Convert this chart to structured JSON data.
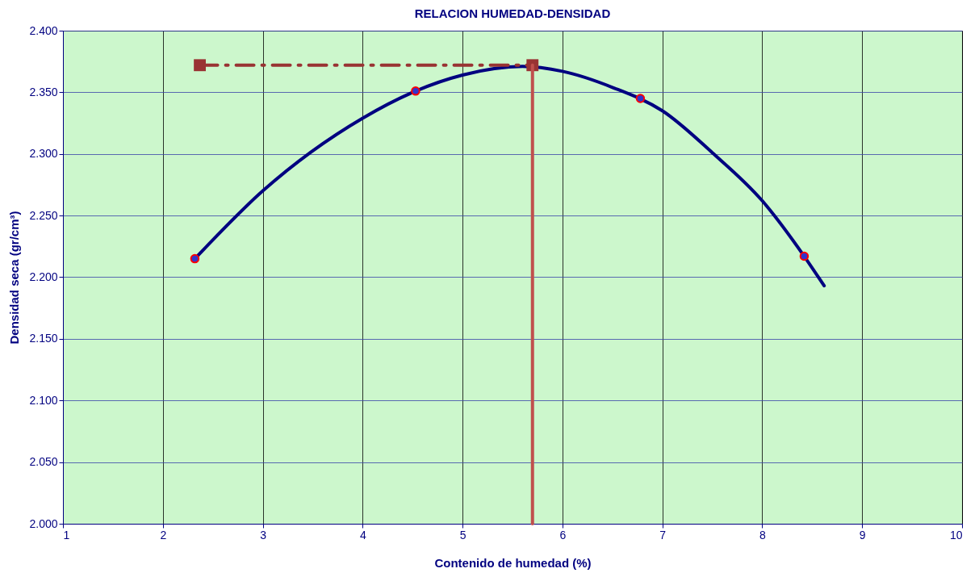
{
  "chart_data": {
    "type": "scatter",
    "title": "RELACION HUMEDAD-DENSIDAD",
    "xlabel": "Contenido de humedad (%)",
    "ylabel": "Densidad seca (gr/cm³)",
    "xlim": [
      1,
      10
    ],
    "xticks": [
      1,
      2,
      3,
      4,
      5,
      6,
      7,
      8,
      9,
      10
    ],
    "ylim": [
      2.0,
      2.4
    ],
    "yticks": [
      {
        "value": 2.0,
        "label": "2.000"
      },
      {
        "value": 2.05,
        "label": "2.050"
      },
      {
        "value": 2.1,
        "label": "2.100"
      },
      {
        "value": 2.15,
        "label": "2.150"
      },
      {
        "value": 2.2,
        "label": "2.200"
      },
      {
        "value": 2.25,
        "label": "2.250"
      },
      {
        "value": 2.3,
        "label": "2.300"
      },
      {
        "value": 2.35,
        "label": "2.350"
      },
      {
        "value": 2.4,
        "label": "2.400"
      }
    ],
    "grid": true,
    "series": [
      {
        "type": "line",
        "color": "#000080",
        "x": [
          2.32,
          3,
          4,
          4.53,
          5,
          5.6,
          6,
          6.5,
          7,
          7.5,
          8,
          8.42,
          8.62
        ],
        "values": [
          2.215,
          2.27,
          2.329,
          2.351,
          2.364,
          2.371,
          2.367,
          2.354,
          2.335,
          2.301,
          2.262,
          2.217,
          2.193
        ],
        "marker": "none",
        "line_style": "solid"
      },
      {
        "type": "scatter",
        "color": "#ff0000",
        "x": [
          2.32,
          4.53,
          6.78,
          8.42
        ],
        "values": [
          2.215,
          2.351,
          2.345,
          2.217
        ],
        "marker": "circle"
      },
      {
        "type": "line",
        "color": "#993333",
        "x": [
          2.37,
          5.7
        ],
        "values": [
          2.372,
          2.372
        ],
        "marker": "square",
        "line_style": "dashed"
      },
      {
        "type": "line",
        "color": "#c0504d",
        "x": [
          5.7,
          5.7
        ],
        "values": [
          2.0,
          2.372
        ],
        "marker": "none",
        "line_style": "solid"
      }
    ]
  }
}
